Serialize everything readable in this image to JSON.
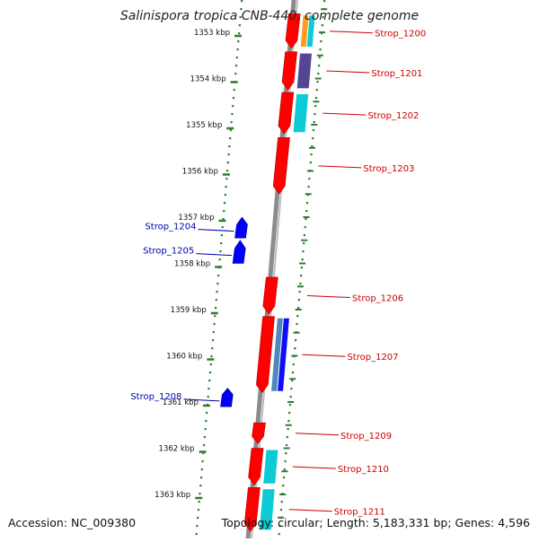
{
  "title": "Salinispora tropica CNB-440, complete genome",
  "footer": {
    "accession": "Accession: NC_009380",
    "summary": "Topology: circular; Length: 5,183,331 bp; Genes: 4,596"
  },
  "colors": {
    "forward_gene": "#ff0000",
    "reverse_gene": "#0000ff",
    "label_forward": "#cc0000",
    "label_reverse": "#0000aa",
    "ruler_tick": "#2e7d32",
    "backbone": "#8c8c8c",
    "cog_cyan": "#00c8d2",
    "cog_purple": "#4b3c8c",
    "cog_orange": "#ff9614",
    "cog_steel": "#4682b4",
    "cog_blue": "#0000ff"
  },
  "ruler": [
    {
      "kbp": 1353,
      "label": "1353 kbp"
    },
    {
      "kbp": 1354,
      "label": "1354 kbp"
    },
    {
      "kbp": 1355,
      "label": "1355 kbp"
    },
    {
      "kbp": 1356,
      "label": "1356 kbp"
    },
    {
      "kbp": 1357,
      "label": "1357 kbp"
    },
    {
      "kbp": 1358,
      "label": "1358 kbp"
    },
    {
      "kbp": 1359,
      "label": "1359 kbp"
    },
    {
      "kbp": 1360,
      "label": "1360 kbp"
    },
    {
      "kbp": 1361,
      "label": "1361 kbp"
    },
    {
      "kbp": 1362,
      "label": "1362 kbp"
    },
    {
      "kbp": 1363,
      "label": "1363 kbp"
    }
  ],
  "genes": [
    {
      "label": "Strop_1200",
      "strand": "+",
      "start": 1352.6,
      "end": 1353.35
    },
    {
      "label": "Strop_1201",
      "strand": "+",
      "start": 1353.42,
      "end": 1354.25
    },
    {
      "label": "Strop_1202",
      "strand": "+",
      "start": 1354.3,
      "end": 1355.2
    },
    {
      "label": "Strop_1203",
      "strand": "+",
      "start": 1355.28,
      "end": 1356.5
    },
    {
      "label": "Strop_1204",
      "strand": "-",
      "start": 1357.0,
      "end": 1357.45
    },
    {
      "label": "Strop_1205",
      "strand": "-",
      "start": 1357.5,
      "end": 1358.0
    },
    {
      "label": "Strop_1206",
      "strand": "+",
      "start": 1358.3,
      "end": 1359.1
    },
    {
      "label": "Strop_1207",
      "strand": "+",
      "start": 1359.15,
      "end": 1360.8
    },
    {
      "label": "Strop_1208",
      "strand": "-",
      "start": 1360.7,
      "end": 1361.1
    },
    {
      "label": "Strop_1209",
      "strand": "+",
      "start": 1361.45,
      "end": 1361.9
    },
    {
      "label": "Strop_1210",
      "strand": "+",
      "start": 1362.0,
      "end": 1362.8
    },
    {
      "label": "Strop_1211",
      "strand": "+",
      "start": 1362.85,
      "end": 1363.8
    }
  ],
  "cog_bars": [
    {
      "gene": "Strop_1200",
      "colors": [
        "#ff9614",
        "#00c8d2"
      ]
    },
    {
      "gene": "Strop_1201",
      "colors": [
        "#4b3c8c"
      ]
    },
    {
      "gene": "Strop_1202",
      "colors": [
        "#00c8d2"
      ]
    },
    {
      "gene": "Strop_1207",
      "colors": [
        "#4682b4",
        "#0000ff"
      ]
    },
    {
      "gene": "Strop_1210",
      "colors": [
        "#00c8d2"
      ]
    },
    {
      "gene": "Strop_1211",
      "colors": [
        "#00c8d2"
      ]
    }
  ]
}
